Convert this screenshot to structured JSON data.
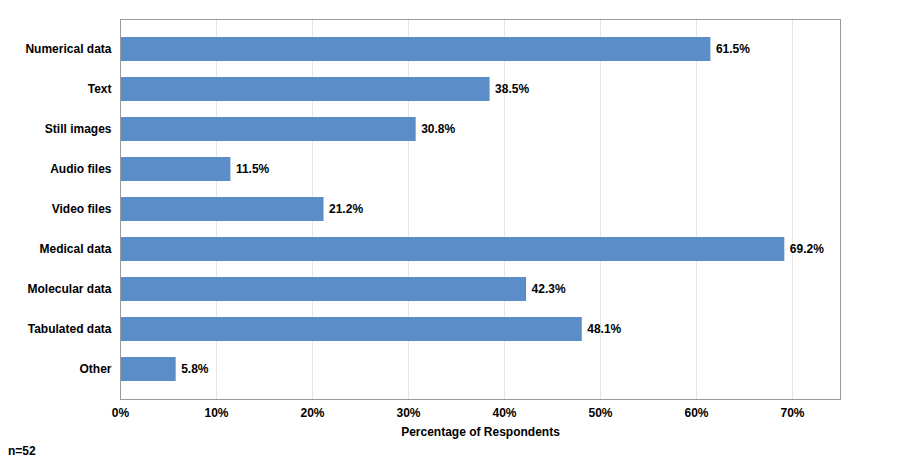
{
  "chart_data": {
    "type": "bar",
    "orientation": "horizontal",
    "categories": [
      "Numerical data",
      "Text",
      "Still images",
      "Audio files",
      "Video files",
      "Medical data",
      "Molecular data",
      "Tabulated data",
      "Other"
    ],
    "values": [
      61.5,
      38.5,
      30.8,
      11.5,
      21.2,
      69.2,
      42.3,
      48.1,
      5.8
    ],
    "value_labels": [
      "61.5%",
      "38.5%",
      "30.8%",
      "11.5%",
      "21.2%",
      "69.2%",
      "42.3%",
      "48.1%",
      "5.8%"
    ],
    "data_labels": true,
    "color": "#5B8DC8",
    "xlabel": "Percentage of Respondents",
    "xlim": [
      0,
      75
    ],
    "xticks": [
      {
        "value": 0,
        "label": "0%"
      },
      {
        "value": 10,
        "label": "10%"
      },
      {
        "value": 20,
        "label": "20%"
      },
      {
        "value": 30,
        "label": "30%"
      },
      {
        "value": 40,
        "label": "40%"
      },
      {
        "value": 50,
        "label": "50%"
      },
      {
        "value": 60,
        "label": "60%"
      },
      {
        "value": 70,
        "label": "70%"
      }
    ],
    "grid": true,
    "annotations": [
      "n=52"
    ]
  }
}
